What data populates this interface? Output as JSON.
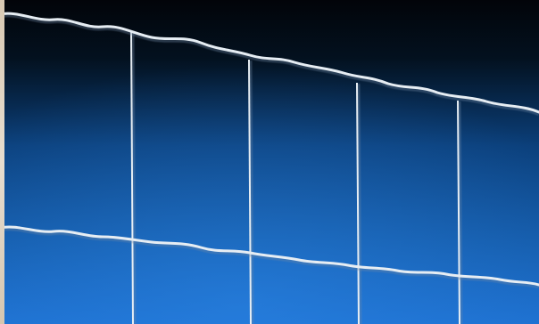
{
  "image": {
    "subject": "welded-wire-fence-photo",
    "colors": {
      "sky_top": "#020409",
      "sky_mid": "#0b3f7a",
      "sky_bottom": "#1d6fcf",
      "wire": "#e6edf3",
      "wire_shadow": "#7f98b5"
    }
  }
}
